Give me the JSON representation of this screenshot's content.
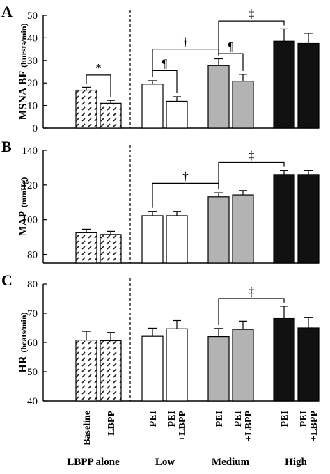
{
  "figure": {
    "bar_labels": [
      "Baseline",
      "LBPP",
      "PEI",
      "PEI +LBPP",
      "PEI",
      "PEI +LBPP",
      "PEI",
      "PEI +LBPP"
    ],
    "groups": [
      "LBPP alone",
      "Low",
      "Medium",
      "High"
    ]
  },
  "colors": {
    "lbpp_alone": "#ffffff",
    "low": "#ffffff",
    "medium": "#b3b3b3",
    "high": "#111111"
  },
  "chart_data": [
    {
      "type": "bar",
      "panel": "A",
      "ylabel": "MSNA BF",
      "yunit": "(bursts/min)",
      "ylim": [
        0,
        50
      ],
      "ticks": [
        0,
        10,
        20,
        30,
        40,
        50
      ],
      "categories": [
        "Baseline",
        "LBPP",
        "PEI",
        "PEI +LBPP",
        "PEI",
        "PEI +LBPP",
        "PEI",
        "PEI +LBPP"
      ],
      "values": [
        16.8,
        11.0,
        19.5,
        11.9,
        27.7,
        20.8,
        38.5,
        37.5
      ],
      "errors": [
        1.3,
        1.3,
        1.5,
        2.0,
        3.0,
        3.0,
        5.5,
        4.5
      ],
      "annotations": [
        {
          "symbol": "*",
          "from": 0,
          "to": 1,
          "level": 23.5
        },
        {
          "symbol": "¶",
          "from": 2,
          "to": 3,
          "level": 25.5
        },
        {
          "symbol": "†",
          "from": 2,
          "to": 4,
          "level": 35.0
        },
        {
          "symbol": "¶",
          "from": 4,
          "to": 5,
          "level": 33.0
        },
        {
          "symbol": "‡",
          "from": 4,
          "to": 6,
          "level": 47.5
        }
      ]
    },
    {
      "type": "bar",
      "panel": "B",
      "ylabel": "MAP",
      "yunit": "(mmHg)",
      "ylim": [
        75,
        140
      ],
      "ticks": [
        80,
        100,
        120,
        140
      ],
      "categories": [
        "Baseline",
        "LBPP",
        "PEI",
        "PEI +LBPP",
        "PEI",
        "PEI +LBPP",
        "PEI",
        "PEI +LBPP"
      ],
      "values": [
        92.5,
        91.5,
        102.3,
        102.3,
        113.2,
        114.3,
        126.0,
        126.0
      ],
      "errors": [
        2.0,
        1.8,
        2.5,
        2.5,
        2.3,
        2.5,
        2.5,
        2.5
      ],
      "annotations": [
        {
          "symbol": "†",
          "from": 2,
          "to": 4,
          "level": 121.0
        },
        {
          "symbol": "‡",
          "from": 4,
          "to": 6,
          "level": 133.0
        }
      ]
    },
    {
      "type": "bar",
      "panel": "C",
      "ylabel": "HR",
      "yunit": "(beats/min)",
      "ylim": [
        40,
        80
      ],
      "ticks": [
        40,
        50,
        60,
        70,
        80
      ],
      "categories": [
        "Baseline",
        "LBPP",
        "PEI",
        "PEI +LBPP",
        "PEI",
        "PEI +LBPP",
        "PEI",
        "PEI +LBPP"
      ],
      "values": [
        60.8,
        60.6,
        62.1,
        64.7,
        62.0,
        64.5,
        68.2,
        65.0
      ],
      "errors": [
        3.0,
        2.8,
        2.8,
        2.8,
        2.8,
        2.8,
        4.2,
        3.5
      ],
      "annotations": [
        {
          "symbol": "‡",
          "from": 4,
          "to": 6,
          "level": 75.0
        }
      ]
    }
  ]
}
